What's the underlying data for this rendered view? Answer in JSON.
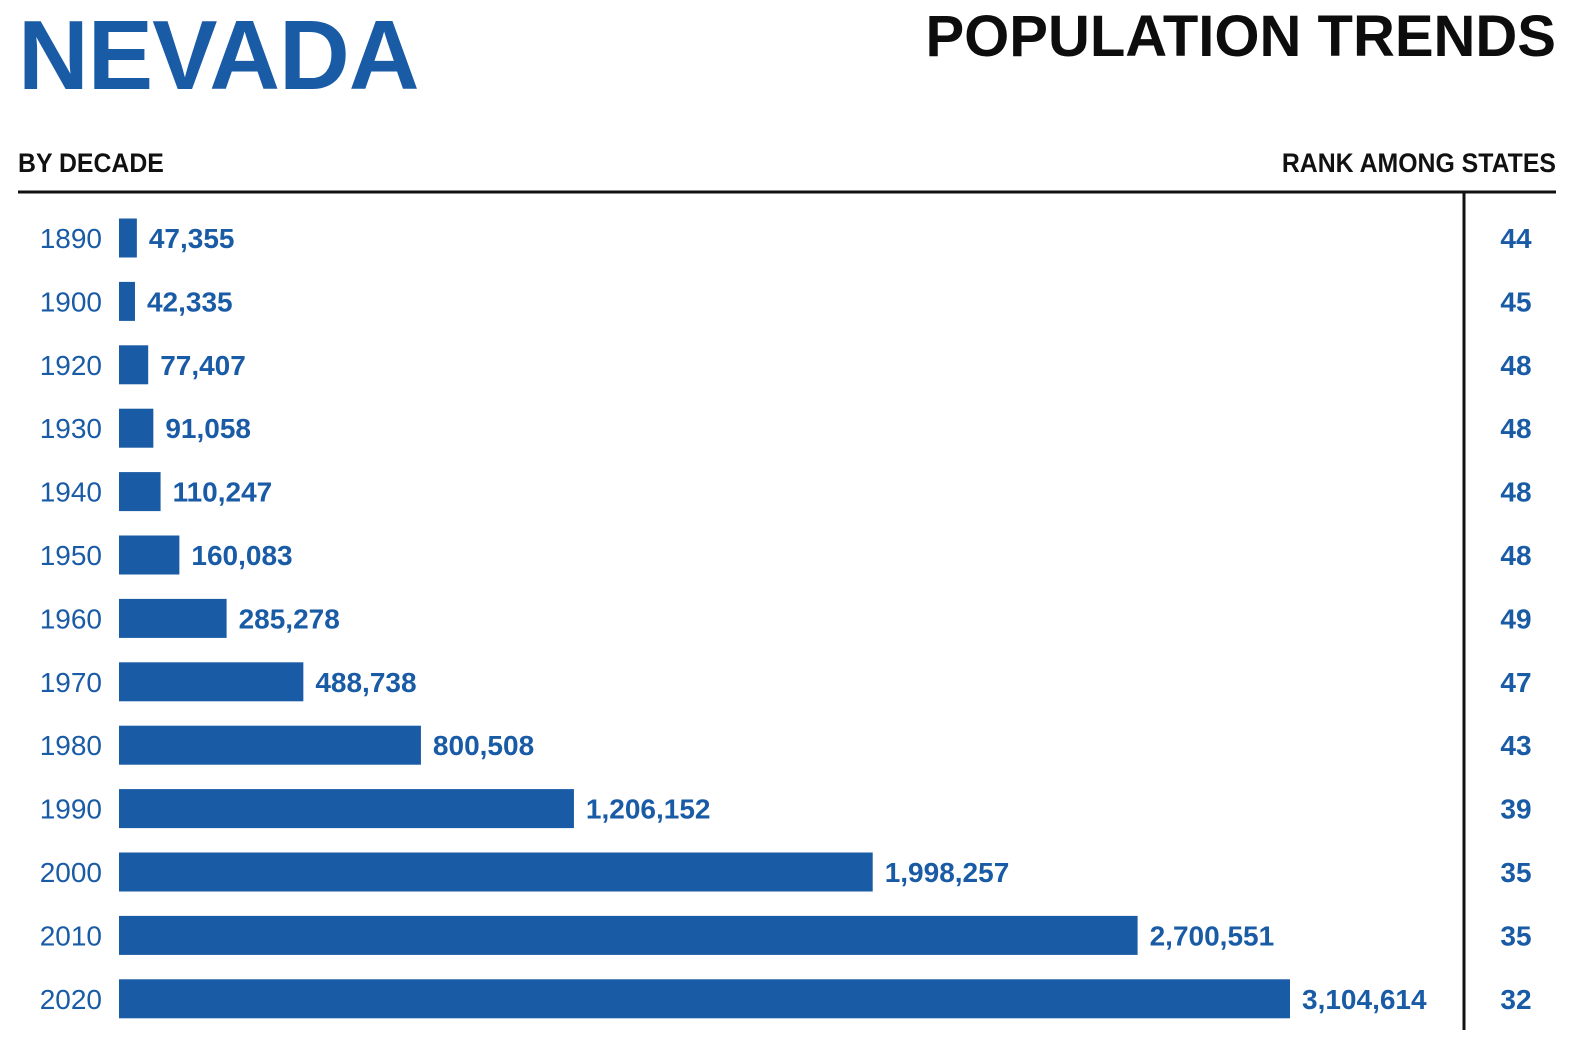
{
  "header": {
    "state_name": "NEVADA",
    "title": "POPULATION TRENDS",
    "left_column_label": "BY DECADE",
    "right_column_label": "RANK AMONG STATES"
  },
  "colors": {
    "bar": "#1a5ba6",
    "year_text": "#1a5ba6",
    "value_text": "#1a5ba6",
    "rank_text": "#1a5ba6",
    "rules": "#111111"
  },
  "chart_data": {
    "type": "bar",
    "orientation": "horizontal",
    "categories": [
      "1890",
      "1900",
      "1920",
      "1930",
      "1940",
      "1950",
      "1960",
      "1970",
      "1980",
      "1990",
      "2000",
      "2010",
      "2020"
    ],
    "series": [
      {
        "values": [
          47355,
          42335,
          77407,
          91058,
          110247,
          160083,
          285278,
          488738,
          800508,
          1206152,
          1998257,
          2700551,
          3104614
        ]
      }
    ],
    "value_labels": [
      "47,355",
      "42,335",
      "77,407",
      "91,058",
      "110,247",
      "160,083",
      "285,278",
      "488,738",
      "800,508",
      "1,206,152",
      "1,998,257",
      "2,700,551",
      "3,104,614"
    ],
    "ranks": [
      "44",
      "45",
      "48",
      "48",
      "48",
      "48",
      "49",
      "47",
      "43",
      "39",
      "35",
      "35",
      "32"
    ],
    "title": "POPULATION TRENDS",
    "xlabel": "",
    "ylabel": "BY DECADE",
    "xlim": [
      0,
      3104614
    ],
    "grid": false,
    "legend": "none"
  }
}
